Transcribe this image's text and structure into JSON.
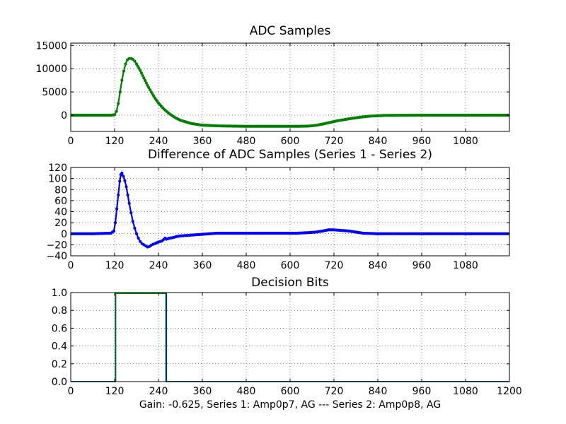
{
  "figure": {
    "caption": "Gain: -0.625, Series 1: Amp0p7, AG --- Series 2: Amp0p8, AG"
  },
  "chart_data": [
    {
      "type": "line",
      "title": "ADC Samples",
      "xlabel": "",
      "ylabel": "",
      "xlim": [
        0,
        1200
      ],
      "ylim": [
        -3500,
        15500
      ],
      "xticks": [
        0,
        120,
        240,
        360,
        480,
        600,
        720,
        840,
        960,
        1080
      ],
      "xtick_labels": [
        "0",
        "120",
        "240",
        "360",
        "480",
        "600",
        "720",
        "840",
        "960",
        "1080"
      ],
      "yticks": [
        0,
        5000,
        10000,
        15000
      ],
      "ytick_labels": [
        "0",
        "5000",
        "10000",
        "15000"
      ],
      "grid": true,
      "series": [
        {
          "color": "#007f00",
          "marker": "dot",
          "x": [
            0,
            60,
            110,
            120,
            125,
            130,
            135,
            140,
            145,
            150,
            155,
            160,
            165,
            170,
            175,
            180,
            190,
            200,
            210,
            220,
            230,
            240,
            255,
            270,
            285,
            300,
            330,
            360,
            400,
            480,
            560,
            620,
            650,
            670,
            690,
            710,
            730,
            760,
            790,
            820,
            860,
            960,
            1080,
            1200
          ],
          "y": [
            0,
            0,
            0,
            100,
            800,
            2500,
            5000,
            7500,
            9500,
            11000,
            11900,
            12200,
            12200,
            12000,
            11600,
            11000,
            9600,
            8000,
            6400,
            5000,
            3700,
            2600,
            1300,
            300,
            -500,
            -1100,
            -1800,
            -2150,
            -2300,
            -2400,
            -2400,
            -2400,
            -2350,
            -2200,
            -1900,
            -1550,
            -1200,
            -800,
            -450,
            -200,
            -50,
            0,
            0,
            0
          ]
        }
      ]
    },
    {
      "type": "line",
      "title": "Difference of ADC Samples (Series 1 - Series 2)",
      "xlabel": "",
      "ylabel": "",
      "xlim": [
        0,
        1200
      ],
      "ylim": [
        -40,
        120
      ],
      "xticks": [
        0,
        120,
        240,
        360,
        480,
        600,
        720,
        840,
        960,
        1080
      ],
      "xtick_labels": [
        "0",
        "120",
        "240",
        "360",
        "480",
        "600",
        "720",
        "840",
        "960",
        "1080"
      ],
      "yticks": [
        -40,
        -20,
        0,
        20,
        40,
        60,
        80,
        100,
        120
      ],
      "ytick_labels": [
        "−40",
        "−20",
        "0",
        "20",
        "40",
        "60",
        "80",
        "100",
        "120"
      ],
      "grid": true,
      "series": [
        {
          "color": "#0000ff",
          "marker": "dot",
          "x": [
            0,
            60,
            110,
            118,
            122,
            126,
            130,
            134,
            137,
            140,
            144,
            148,
            152,
            156,
            160,
            165,
            170,
            175,
            180,
            185,
            190,
            195,
            200,
            205,
            210,
            215,
            220,
            225,
            230,
            240,
            250,
            258,
            262,
            270,
            280,
            290,
            300,
            320,
            340,
            360,
            380,
            400,
            420,
            480,
            560,
            620,
            650,
            670,
            690,
            705,
            720,
            740,
            760,
            780,
            800,
            840,
            900,
            1000,
            1200
          ],
          "y": [
            0,
            0,
            1,
            5,
            20,
            45,
            70,
            95,
            107,
            110,
            104,
            96,
            85,
            70,
            55,
            38,
            22,
            10,
            0,
            -8,
            -14,
            -18,
            -20,
            -22,
            -24,
            -23,
            -21,
            -19,
            -18,
            -15,
            -13,
            -8,
            -10,
            -8,
            -7,
            -5,
            -4,
            -3,
            -2,
            -1,
            0,
            1,
            1,
            1,
            1,
            1,
            2,
            3,
            5,
            7,
            7,
            6,
            5,
            3,
            1,
            0,
            0,
            0,
            0
          ]
        }
      ]
    },
    {
      "type": "line",
      "title": "Decision Bits",
      "xlabel": "",
      "ylabel": "",
      "xlim": [
        0,
        1200
      ],
      "ylim": [
        0,
        1
      ],
      "xticks": [
        0,
        120,
        240,
        360,
        480,
        600,
        720,
        840,
        960,
        1080,
        1200
      ],
      "xtick_labels": [
        "0",
        "120",
        "240",
        "360",
        "480",
        "600",
        "720",
        "840",
        "960",
        "1080",
        "1200"
      ],
      "yticks": [
        0,
        0.2,
        0.4,
        0.6,
        0.8,
        1.0
      ],
      "ytick_labels": [
        "0.0",
        "0.2",
        "0.4",
        "0.6",
        "0.8",
        "1.0"
      ],
      "grid": true,
      "series": [
        {
          "color": "#0000ff",
          "marker": "none",
          "x": [
            0,
            123,
            123,
            262,
            262,
            1200
          ],
          "y": [
            0,
            0,
            0.99,
            0.99,
            0,
            0
          ]
        },
        {
          "color": "#007f00",
          "marker": "none",
          "x": [
            0,
            122,
            122,
            260,
            260,
            1200
          ],
          "y": [
            0,
            0,
            0.99,
            0.99,
            0,
            0
          ]
        }
      ]
    }
  ]
}
